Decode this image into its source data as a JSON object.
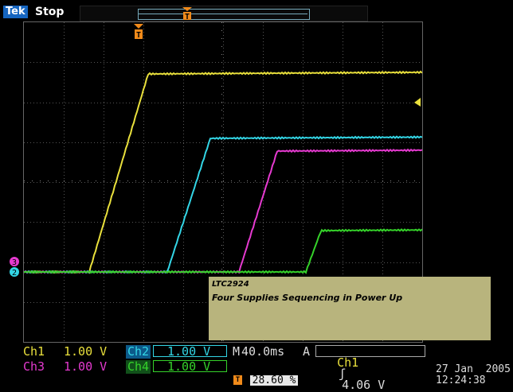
{
  "top": {
    "brand": "Tek",
    "status": "Stop"
  },
  "note": {
    "title": "LTC2924",
    "subtitle": "Four Supplies Sequencing in Power Up"
  },
  "channels": {
    "ch1": {
      "label": "Ch1",
      "scale": "1.00 V",
      "color": "#e9e03c"
    },
    "ch2": {
      "label": "Ch2",
      "scale": "1.00 V",
      "color": "#33d6e6"
    },
    "ch3": {
      "label": "Ch3",
      "scale": "1.00 V",
      "color": "#e63ad0"
    },
    "ch4": {
      "label": "Ch4",
      "scale": "1.00 V",
      "color": "#35d22a"
    }
  },
  "horizontal": {
    "prefix": "M",
    "timebase": "40.0ms"
  },
  "trigger": {
    "prefix": "A",
    "source": "Ch1",
    "slope_symbol": "ʃ",
    "level": "4.06 V",
    "position_pct": "28.60 %"
  },
  "markers": {
    "trigger_marker": "T",
    "ch2_marker": "2",
    "ch3_marker": "3"
  },
  "timestamp": {
    "date": "27 Jan  2005",
    "time": "12:24:38"
  }
}
